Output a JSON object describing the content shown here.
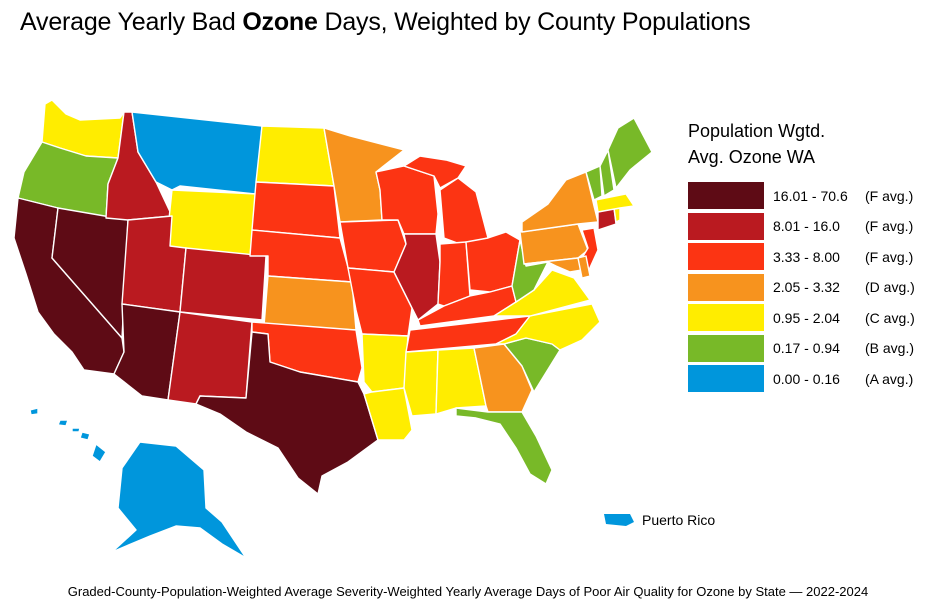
{
  "title": {
    "prefix": "Average Yearly Bad ",
    "bold": "Ozone",
    "suffix": " Days, Weighted by County Populations"
  },
  "legend": {
    "title_line1": "Population Wgtd.",
    "title_line2": "Avg. Ozone WA",
    "items": [
      {
        "range": "16.01 - 70.6",
        "grade": "(F avg.)",
        "color": "#5e0b15"
      },
      {
        "range": "8.01 - 16.0",
        "grade": "(F avg.)",
        "color": "#ba1a20"
      },
      {
        "range": "3.33 - 8.00",
        "grade": "(F avg.)",
        "color": "#fc3413"
      },
      {
        "range": "2.05 - 3.32",
        "grade": "(D avg.)",
        "color": "#f7931e"
      },
      {
        "range": "0.95 - 2.04",
        "grade": "(C avg.)",
        "color": "#ffed00"
      },
      {
        "range": "0.17 - 0.94",
        "grade": "(B avg.)",
        "color": "#78b928"
      },
      {
        "range": "0.00 - 0.16",
        "grade": "(A avg.)",
        "color": "#0096dc"
      }
    ]
  },
  "puerto_rico": {
    "label": "Puerto Rico",
    "class": 6
  },
  "caption": "Graded-County-Population-Weighted Average Severity-Weighted Yearly Average Days of Poor Air Quality for Ozone by State — 2022-2024",
  "state_classes": {
    "WA": 4,
    "OR": 5,
    "CA": 0,
    "NV": 0,
    "AZ": 0,
    "ID": 1,
    "MT": 6,
    "WY": 4,
    "UT": 1,
    "CO": 1,
    "NM": 1,
    "TX": 0,
    "ND": 4,
    "SD": 2,
    "NE": 2,
    "KS": 3,
    "OK": 2,
    "MN": 3,
    "IA": 2,
    "MO": 2,
    "AR": 4,
    "LA": 4,
    "WI": 2,
    "IL": 1,
    "MI": 2,
    "IN": 2,
    "OH": 2,
    "KY": 2,
    "TN": 2,
    "MS": 4,
    "AL": 4,
    "GA": 3,
    "FL": 5,
    "SC": 5,
    "NC": 4,
    "VA": 4,
    "WV": 5,
    "PA": 3,
    "NY": 3,
    "NJ": 2,
    "DE": 3,
    "MD": 3,
    "CT": 1,
    "RI": 4,
    "MA": 4,
    "VT": 5,
    "NH": 5,
    "ME": 5,
    "AK": 6,
    "HI": 6
  }
}
